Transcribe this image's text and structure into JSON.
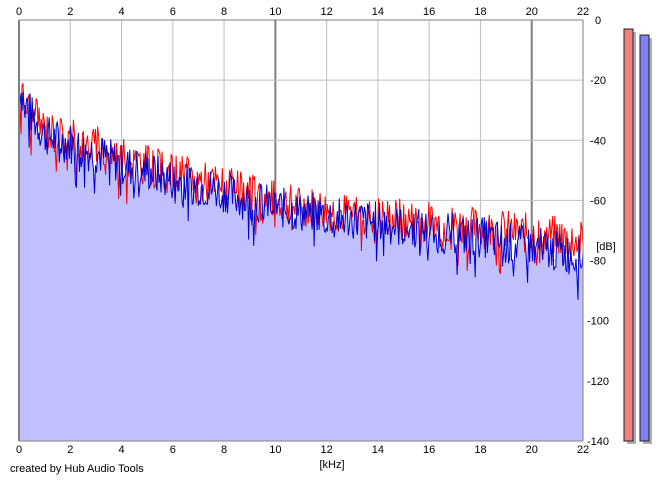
{
  "chart_data": {
    "type": "area",
    "xlabel": "[kHz]",
    "ylabel": "[dB]",
    "xlim": [
      0,
      22
    ],
    "ylim": [
      -140,
      0
    ],
    "x_ticks": [
      0,
      2,
      4,
      6,
      8,
      10,
      12,
      14,
      16,
      18,
      20,
      22
    ],
    "y_ticks": [
      0,
      -20,
      -40,
      -60,
      -80,
      -100,
      -120,
      -140
    ],
    "grid": true,
    "colors": {
      "red_series": "#ff0000",
      "blue_series": "#0000d0",
      "area_fill": "#c0c0ff",
      "red_meter": "#f08080",
      "blue_meter": "#8080f0"
    },
    "series": [
      {
        "color": "#ff0000",
        "x": [
          0,
          0.5,
          1,
          1.5,
          2,
          2.5,
          3,
          3.5,
          4,
          4.5,
          5,
          5.5,
          6,
          6.5,
          7,
          7.5,
          8,
          8.5,
          9,
          9.5,
          10,
          10.5,
          11,
          11.5,
          12,
          12.5,
          13,
          13.5,
          14,
          14.5,
          15,
          15.5,
          16,
          16.5,
          17,
          17.5,
          18,
          18.5,
          19,
          19.5,
          20,
          20.5,
          21,
          21.5,
          22
        ],
        "values": [
          -24,
          -31,
          -36,
          -38,
          -39,
          -41,
          -42,
          -44,
          -46,
          -47,
          -48,
          -50,
          -51,
          -52,
          -53,
          -54,
          -55,
          -57,
          -58,
          -59,
          -60,
          -61,
          -62,
          -62,
          -63,
          -64,
          -64,
          -65,
          -65,
          -66,
          -66,
          -67,
          -67,
          -68,
          -68,
          -69,
          -69,
          -70,
          -70,
          -71,
          -71,
          -72,
          -72,
          -73,
          -74
        ]
      },
      {
        "color": "#0000d0",
        "x": [
          0,
          0.5,
          1,
          1.5,
          2,
          2.5,
          3,
          3.5,
          4,
          4.5,
          5,
          5.5,
          6,
          6.5,
          7,
          7.5,
          8,
          8.5,
          9,
          9.5,
          10,
          10.5,
          11,
          11.5,
          12,
          12.5,
          13,
          13.5,
          14,
          14.5,
          15,
          15.5,
          16,
          16.5,
          17,
          17.5,
          18,
          18.5,
          19,
          19.5,
          20,
          20.5,
          21,
          21.5,
          22
        ],
        "values": [
          -22,
          -32,
          -38,
          -40,
          -41,
          -43,
          -44,
          -46,
          -48,
          -49,
          -50,
          -52,
          -53,
          -54,
          -55,
          -56,
          -57,
          -59,
          -60,
          -61,
          -62,
          -63,
          -64,
          -64,
          -65,
          -66,
          -66,
          -67,
          -67,
          -68,
          -69,
          -69,
          -70,
          -71,
          -71,
          -72,
          -72,
          -73,
          -74,
          -75,
          -75,
          -76,
          -77,
          -78,
          -79
        ]
      }
    ],
    "meters": [
      {
        "color": "#f08080",
        "level_db": -3
      },
      {
        "color": "#8080f0",
        "level_db": -5
      }
    ]
  },
  "footer": {
    "credit": "created by Hub Audio Tools"
  }
}
